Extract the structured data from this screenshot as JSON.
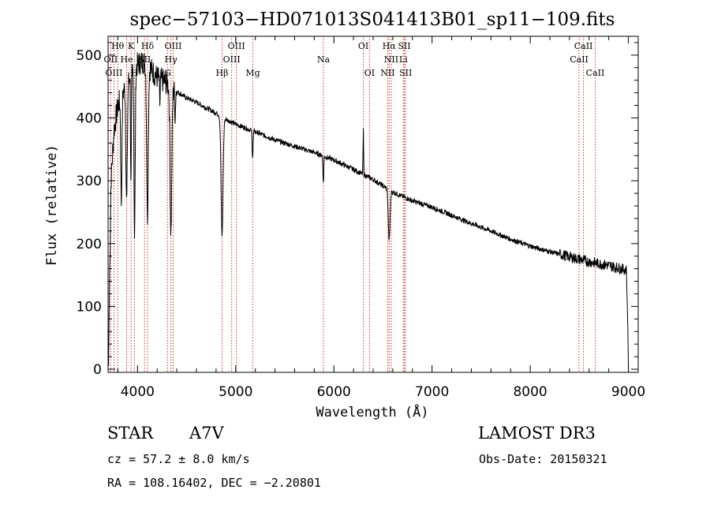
{
  "chart_data": {
    "type": "line",
    "title": "spec−57103−HD071013S041413B01_sp11−109.fits",
    "xlabel": "Wavelength (Å)",
    "ylabel": "Flux (relative)",
    "xlim": [
      3700,
      9100
    ],
    "ylim": [
      -5,
      530
    ],
    "xticks": [
      4000,
      5000,
      6000,
      7000,
      8000,
      9000
    ],
    "yticks": [
      0,
      100,
      200,
      300,
      400,
      500
    ],
    "xminor_step": 200,
    "yminor_step": 20,
    "spectrum_continuum": [
      [
        3705,
        5
      ],
      [
        3712,
        110
      ],
      [
        3730,
        300
      ],
      [
        3760,
        380
      ],
      [
        3800,
        420
      ],
      [
        3850,
        440
      ],
      [
        3900,
        460
      ],
      [
        3950,
        475
      ],
      [
        4000,
        485
      ],
      [
        4050,
        490
      ],
      [
        4100,
        485
      ],
      [
        4150,
        475
      ],
      [
        4200,
        465
      ],
      [
        4300,
        455
      ],
      [
        4400,
        442
      ],
      [
        4500,
        432
      ],
      [
        4600,
        425
      ],
      [
        4700,
        416
      ],
      [
        4800,
        408
      ],
      [
        4900,
        398
      ],
      [
        5000,
        390
      ],
      [
        5200,
        378
      ],
      [
        5400,
        365
      ],
      [
        5600,
        355
      ],
      [
        5800,
        345
      ],
      [
        6000,
        333
      ],
      [
        6200,
        318
      ],
      [
        6400,
        302
      ],
      [
        6600,
        282
      ],
      [
        6800,
        268
      ],
      [
        7000,
        258
      ],
      [
        7200,
        245
      ],
      [
        7400,
        232
      ],
      [
        7600,
        220
      ],
      [
        7800,
        207
      ],
      [
        8000,
        196
      ],
      [
        8200,
        187
      ],
      [
        8400,
        179
      ],
      [
        8600,
        171
      ],
      [
        8800,
        165
      ],
      [
        8980,
        158
      ],
      [
        8995,
        60
      ],
      [
        9000,
        0
      ]
    ],
    "spectrum_features": [
      {
        "center": 3835,
        "depth": 170,
        "width": 6
      },
      {
        "center": 3889,
        "depth": 190,
        "width": 7
      },
      {
        "center": 3933,
        "depth": 180,
        "width": 4
      },
      {
        "center": 3970,
        "depth": 270,
        "width": 6
      },
      {
        "center": 4101,
        "depth": 240,
        "width": 8
      },
      {
        "center": 4227,
        "depth": 40,
        "width": 4
      },
      {
        "center": 4340,
        "depth": 230,
        "width": 9
      },
      {
        "center": 4383,
        "depth": 40,
        "width": 4
      },
      {
        "center": 4861,
        "depth": 190,
        "width": 10
      },
      {
        "center": 5172,
        "depth": 40,
        "width": 5
      },
      {
        "center": 5893,
        "depth": 45,
        "width": 4
      },
      {
        "center": 6300,
        "depth": -70,
        "width": 3
      },
      {
        "center": 6563,
        "depth": 80,
        "width": 9
      }
    ],
    "noise_amplitude": 4,
    "spectral_lines": [
      {
        "label": "Hθ",
        "wavelength": 3798,
        "row": 0
      },
      {
        "label": "K",
        "wavelength": 3934,
        "row": 0
      },
      {
        "label": "Hδ",
        "wavelength": 4102,
        "row": 0
      },
      {
        "label": "OIII",
        "wavelength": 4363,
        "row": 0
      },
      {
        "label": "OIII",
        "wavelength": 5007,
        "row": 0
      },
      {
        "label": "OI",
        "wavelength": 6300,
        "row": 0
      },
      {
        "label": "Hα",
        "wavelength": 6563,
        "row": 0
      },
      {
        "label": "SII",
        "wavelength": 6717,
        "row": 0
      },
      {
        "label": "CaII",
        "wavelength": 8542,
        "row": 0
      },
      {
        "label": "OII",
        "wavelength": 3727,
        "row": 1
      },
      {
        "label": "He",
        "wavelength": 3889,
        "row": 1
      },
      {
        "label": "SII",
        "wavelength": 4071,
        "row": 1
      },
      {
        "label": "Hγ",
        "wavelength": 4340,
        "row": 1
      },
      {
        "label": "OIII",
        "wavelength": 4959,
        "row": 1
      },
      {
        "label": "Na",
        "wavelength": 5893,
        "row": 1
      },
      {
        "label": "NII",
        "wavelength": 6584,
        "row": 1
      },
      {
        "label": "Li",
        "wavelength": 6708,
        "row": 1
      },
      {
        "label": "CaII",
        "wavelength": 8498,
        "row": 1
      },
      {
        "label": "OIII",
        "wavelength": 3760,
        "row": 2
      },
      {
        "label": "H",
        "wavelength": 3968,
        "row": 2
      },
      {
        "label": "G",
        "wavelength": 4305,
        "row": 2
      },
      {
        "label": "Hβ",
        "wavelength": 4861,
        "row": 2
      },
      {
        "label": "Mg",
        "wavelength": 5175,
        "row": 2
      },
      {
        "label": "OI",
        "wavelength": 6363,
        "row": 2
      },
      {
        "label": "NII",
        "wavelength": 6548,
        "row": 2
      },
      {
        "label": "SII",
        "wavelength": 6731,
        "row": 2
      },
      {
        "label": "CaII",
        "wavelength": 8662,
        "row": 2
      }
    ]
  },
  "footer": {
    "object_type": "STAR",
    "spectral_class": "A7V",
    "survey": "LAMOST DR3",
    "redshift": "cz = 57.2 ± 8.0 km/s",
    "obs_date": "Obs-Date: 20150321",
    "coords": "RA = 108.16402, DEC =  −2.20801"
  }
}
